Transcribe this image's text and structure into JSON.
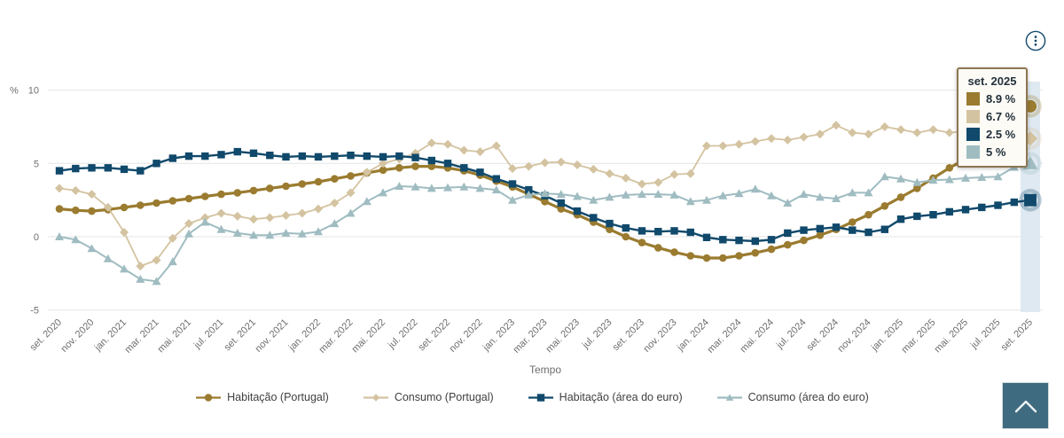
{
  "tooltip": {
    "title": "set. 2025",
    "rows": [
      {
        "series": "Habitação (Portugal)",
        "value": "8.9 %",
        "color": "#9A7B2F"
      },
      {
        "series": "Consumo (Portugal)",
        "value": "6.7 %",
        "color": "#D4C3A0"
      },
      {
        "series": "Habitação (área do euro)",
        "value": "2.5 %",
        "color": "#10496B"
      },
      {
        "series": "Consumo (área do euro)",
        "value": "5 %",
        "color": "#9FBCC1"
      }
    ]
  },
  "icons": {
    "more_options": "vertical-ellipsis-in-circle",
    "back_to_top": "chevron-up"
  },
  "colors": {
    "grid": "#E6E6E6",
    "axis_text": "#6E6E6E",
    "highlight_band": "#DFE9F1",
    "tooltip_border": "#8D7650",
    "tooltip_bg": "#FDFBF6",
    "back_to_top_bg": "#3F6B80",
    "menu_icon": "#10496B"
  },
  "chart_data": {
    "type": "line",
    "title": "",
    "xlabel": "Tempo",
    "ylabel": "%",
    "ylim": [
      -5,
      10
    ],
    "yticks": [
      10,
      5,
      0,
      -5
    ],
    "x_tick_interval": 2,
    "grid": "horizontal",
    "legend_position": "bottom",
    "highlighted_x": "set. 2025",
    "x": [
      "set. 2020",
      "out. 2020",
      "nov. 2020",
      "dez. 2020",
      "jan. 2021",
      "fev. 2021",
      "mar. 2021",
      "abr. 2021",
      "mai. 2021",
      "jun. 2021",
      "jul. 2021",
      "ago. 2021",
      "set. 2021",
      "out. 2021",
      "nov. 2021",
      "dez. 2021",
      "jan. 2022",
      "fev. 2022",
      "mar. 2022",
      "abr. 2022",
      "mai. 2022",
      "jun. 2022",
      "jul. 2022",
      "ago. 2022",
      "set. 2022",
      "out. 2022",
      "nov. 2022",
      "dez. 2022",
      "jan. 2023",
      "fev. 2023",
      "mar. 2023",
      "abr. 2023",
      "mai. 2023",
      "jun. 2023",
      "jul. 2023",
      "ago. 2023",
      "set. 2023",
      "out. 2023",
      "nov. 2023",
      "dez. 2023",
      "jan. 2024",
      "fev. 2024",
      "mar. 2024",
      "abr. 2024",
      "mai. 2024",
      "jun. 2024",
      "jul. 2024",
      "ago. 2024",
      "set. 2024",
      "out. 2024",
      "nov. 2024",
      "dez. 2024",
      "jan. 2025",
      "fev. 2025",
      "mar. 2025",
      "abr. 2025",
      "mai. 2025",
      "jun. 2025",
      "jul. 2025",
      "ago. 2025",
      "set. 2025"
    ],
    "series": [
      {
        "name": "Habitação (Portugal)",
        "marker": "circle",
        "color": "#9A7B2F",
        "values": [
          1.9,
          1.8,
          1.75,
          1.85,
          2.0,
          2.15,
          2.3,
          2.45,
          2.6,
          2.75,
          2.9,
          3.0,
          3.15,
          3.3,
          3.45,
          3.6,
          3.75,
          3.95,
          4.15,
          4.35,
          4.55,
          4.7,
          4.8,
          4.8,
          4.7,
          4.5,
          4.2,
          3.8,
          3.4,
          2.9,
          2.4,
          1.9,
          1.5,
          1.0,
          0.5,
          0.0,
          -0.4,
          -0.75,
          -1.05,
          -1.3,
          -1.45,
          -1.45,
          -1.3,
          -1.1,
          -0.85,
          -0.55,
          -0.25,
          0.1,
          0.5,
          1.0,
          1.5,
          2.1,
          2.7,
          3.3,
          4.0,
          4.7,
          5.3,
          5.9,
          6.4,
          7.6,
          8.9
        ]
      },
      {
        "name": "Consumo (Portugal)",
        "marker": "diamond",
        "color": "#D4C3A0",
        "values": [
          3.3,
          3.15,
          2.9,
          2.0,
          0.3,
          -2.0,
          -1.6,
          -0.1,
          0.9,
          1.3,
          1.6,
          1.4,
          1.2,
          1.3,
          1.45,
          1.6,
          1.9,
          2.3,
          3.0,
          4.4,
          5.0,
          5.3,
          5.7,
          6.4,
          6.3,
          5.9,
          5.8,
          6.2,
          4.65,
          4.8,
          5.05,
          5.1,
          4.9,
          4.6,
          4.3,
          4.0,
          3.6,
          3.7,
          4.25,
          4.3,
          6.2,
          6.2,
          6.3,
          6.5,
          6.7,
          6.6,
          6.8,
          7.0,
          7.6,
          7.1,
          7.0,
          7.5,
          7.3,
          7.1,
          7.3,
          7.1,
          7.2,
          7.1,
          7.3,
          7.2,
          6.7
        ]
      },
      {
        "name": "Habitação (área do euro)",
        "marker": "square",
        "color": "#10496B",
        "values": [
          4.5,
          4.65,
          4.7,
          4.7,
          4.6,
          4.5,
          5.0,
          5.35,
          5.5,
          5.5,
          5.6,
          5.8,
          5.7,
          5.55,
          5.45,
          5.5,
          5.45,
          5.5,
          5.55,
          5.5,
          5.45,
          5.5,
          5.4,
          5.2,
          5.0,
          4.7,
          4.4,
          3.95,
          3.6,
          3.2,
          2.8,
          2.3,
          1.75,
          1.3,
          0.9,
          0.6,
          0.4,
          0.35,
          0.4,
          0.3,
          -0.05,
          -0.2,
          -0.25,
          -0.3,
          -0.2,
          0.25,
          0.45,
          0.55,
          0.65,
          0.45,
          0.3,
          0.5,
          1.2,
          1.4,
          1.5,
          1.7,
          1.85,
          2.0,
          2.15,
          2.35,
          2.5
        ]
      },
      {
        "name": "Consumo (área do euro)",
        "marker": "triangle",
        "color": "#9FBCC1",
        "values": [
          0.0,
          -0.2,
          -0.8,
          -1.5,
          -2.2,
          -2.9,
          -3.05,
          -1.7,
          0.2,
          1.0,
          0.5,
          0.25,
          0.1,
          0.1,
          0.25,
          0.2,
          0.35,
          0.9,
          1.6,
          2.4,
          3.0,
          3.45,
          3.4,
          3.3,
          3.35,
          3.4,
          3.3,
          3.2,
          2.5,
          2.85,
          2.95,
          2.9,
          2.75,
          2.5,
          2.7,
          2.85,
          2.9,
          2.9,
          2.85,
          2.4,
          2.5,
          2.8,
          2.95,
          3.25,
          2.8,
          2.3,
          2.9,
          2.7,
          2.6,
          3.0,
          3.0,
          4.1,
          3.95,
          3.7,
          3.85,
          3.9,
          4.0,
          4.05,
          4.1,
          4.75,
          5.0
        ]
      }
    ]
  }
}
